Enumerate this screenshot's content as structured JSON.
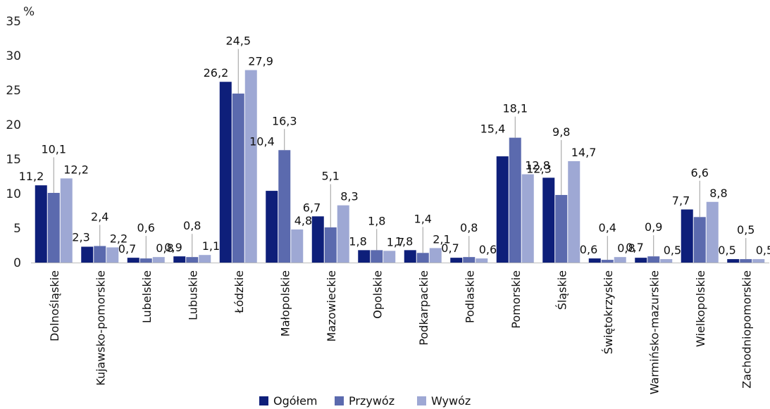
{
  "chart_data": {
    "type": "bar",
    "ylabel": "%",
    "ylim": [
      0,
      35
    ],
    "yticks": [
      "0",
      "5",
      "10",
      "15",
      "20",
      "25",
      "30",
      "35"
    ],
    "grid": false,
    "legend_position": "bottom",
    "categories": [
      "Dolnośląskie",
      "Kujawsko-pomorskie",
      "Lubelskie",
      "Lubuskie",
      "Łódzkie",
      "Małopolskie",
      "Mazowieckie",
      "Opolskie",
      "Podkarpackie",
      "Podlaskie",
      "Pomorskie",
      "Śląskie",
      "Świętokrzyskie",
      "Warmińsko-mazurskie",
      "Wielkopolskie",
      "Zachodniopomorskie"
    ],
    "series": [
      {
        "name": "Ogółem",
        "color": "#0e1f7a",
        "values": [
          11.2,
          2.3,
          0.7,
          0.9,
          26.2,
          10.4,
          6.7,
          1.8,
          1.8,
          0.7,
          15.4,
          12.3,
          0.6,
          0.7,
          7.7,
          0.5
        ],
        "labels": [
          "11,2",
          "2,3",
          "0,7",
          "0,9",
          "26,2",
          "10,4",
          "6,7",
          "1,8",
          "1,8",
          "0,7",
          "15,4",
          "12,3",
          "0,6",
          "0,7",
          "7,7",
          "0,5"
        ]
      },
      {
        "name": "Przywóz",
        "color": "#5b6aae",
        "values": [
          10.1,
          2.4,
          0.6,
          0.8,
          24.5,
          16.3,
          5.1,
          1.8,
          1.4,
          0.8,
          18.1,
          9.8,
          0.4,
          0.9,
          6.6,
          0.5
        ],
        "labels": [
          "10,1",
          "2,4",
          "0,6",
          "0,8",
          "24,5",
          "16,3",
          "5,1",
          "1,8",
          "1,4",
          "0,8",
          "18,1",
          "9,8",
          "0,4",
          "0,9",
          "6,6",
          "0,5"
        ]
      },
      {
        "name": "Wywóz",
        "color": "#9ea8d4",
        "values": [
          12.2,
          2.2,
          0.8,
          1.1,
          27.9,
          4.8,
          8.3,
          1.7,
          2.1,
          0.6,
          12.8,
          14.7,
          0.8,
          0.5,
          8.8,
          0.5
        ],
        "labels": [
          "12,2",
          "2,2",
          "0,8",
          "1,1",
          "27,9",
          "4,8",
          "8,3",
          "1,7",
          "2,1",
          "0,6",
          "12,8",
          "14,7",
          "0,8",
          "0,5",
          "8,8",
          "0,5"
        ]
      }
    ]
  }
}
